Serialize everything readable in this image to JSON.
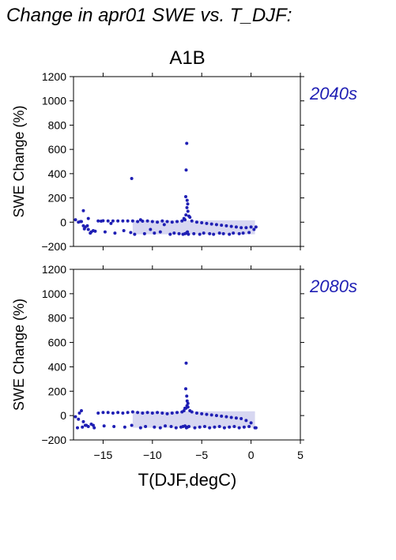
{
  "figure": {
    "title": "Change in apr01 SWE vs. T_DJF:",
    "scenario": "A1B"
  },
  "chart_data": [
    {
      "type": "scatter",
      "panel_label": "2040s",
      "xlabel": "T(DJF,degC)",
      "ylabel": "SWE Change (%)",
      "xlim": [
        -18,
        5
      ],
      "ylim": [
        -200,
        1200
      ],
      "xticks": [
        -15,
        -10,
        -5,
        0,
        5
      ],
      "yticks": [
        -200,
        0,
        200,
        400,
        600,
        800,
        1000,
        1200
      ],
      "grid": false,
      "color": "#1f1fb4",
      "series": [
        {
          "x": [
            -17.5,
            -17.2,
            -17.0,
            -16.8,
            -16.5,
            -16.2,
            -16.0,
            -15.8,
            -15.5,
            -15.2,
            -15.0,
            -14.5,
            -14.0,
            -13.5,
            -13.0,
            -12.5,
            -12.0,
            -11.5,
            -11.0,
            -10.5,
            -10.0,
            -9.5,
            -9.0,
            -8.5,
            -8.0,
            -7.5,
            -7.0,
            -6.8,
            -6.6,
            -6.5,
            -6.4,
            -6.2,
            -6.0,
            -5.5,
            -5.0,
            -4.5,
            -4.0,
            -3.5,
            -3.0,
            -2.5,
            -2.0,
            -1.5,
            -1.0,
            -0.5,
            0.0,
            0.5,
            -16.9,
            -16.3,
            -14.8,
            -13.8,
            -12.9,
            -12.2,
            -11.8,
            -10.8,
            -9.8,
            -9.2,
            -8.2,
            -7.8,
            -7.3,
            -6.9,
            -6.7,
            -6.55,
            -6.45,
            -6.35,
            -5.8,
            -5.2,
            -4.8,
            -4.2,
            -3.8,
            -3.2,
            -2.8,
            -2.2,
            -1.8,
            -1.2,
            -0.8,
            -0.2,
            0.3,
            -17.8,
            -17.3,
            -16.6,
            -14.2,
            -11.2,
            -8.8,
            -6.62,
            -6.48,
            -6.52,
            -12.1,
            -17.0,
            -16.5,
            -10.2,
            -6.58,
            -6.42,
            -6.7,
            -6.3
          ],
          "y": [
            0,
            5,
            95,
            -40,
            -60,
            -80,
            -70,
            -75,
            10,
            8,
            12,
            10,
            10,
            10,
            10,
            10,
            10,
            5,
            8,
            10,
            5,
            0,
            10,
            5,
            0,
            5,
            10,
            30,
            60,
            120,
            90,
            40,
            10,
            0,
            -5,
            -10,
            -15,
            -20,
            -25,
            -30,
            -35,
            -40,
            -45,
            -45,
            -40,
            -40,
            -55,
            -90,
            -80,
            -90,
            -70,
            -85,
            -100,
            -95,
            -90,
            -80,
            -100,
            -90,
            -95,
            -100,
            -95,
            -90,
            -80,
            -100,
            -95,
            -100,
            -90,
            -95,
            -100,
            -90,
            -95,
            -100,
            -90,
            -95,
            -90,
            -85,
            -60,
            20,
            5,
            -30,
            -10,
            20,
            -20,
            210,
            180,
            650,
            360,
            -30,
            30,
            -60,
            430,
            150,
            20,
            50
          ]
        }
      ]
    },
    {
      "type": "scatter",
      "panel_label": "2080s",
      "xlabel": "T(DJF,degC)",
      "ylabel": "SWE Change (%)",
      "xlim": [
        -18,
        5
      ],
      "ylim": [
        -200,
        1200
      ],
      "xticks": [
        -15,
        -10,
        -5,
        0,
        5
      ],
      "yticks": [
        -200,
        0,
        200,
        400,
        600,
        800,
        1000,
        1200
      ],
      "grid": false,
      "color": "#1f1fb4",
      "series": [
        {
          "x": [
            -17.8,
            -17.5,
            -17.2,
            -17.0,
            -16.8,
            -16.5,
            -16.2,
            -16.0,
            -15.5,
            -15.0,
            -14.5,
            -14.0,
            -13.5,
            -13.0,
            -12.5,
            -12.0,
            -11.5,
            -11.0,
            -10.5,
            -10.0,
            -9.5,
            -9.0,
            -8.5,
            -8.0,
            -7.5,
            -7.0,
            -6.8,
            -6.6,
            -6.5,
            -6.4,
            -6.2,
            -6.0,
            -5.5,
            -5.0,
            -4.5,
            -4.0,
            -3.5,
            -3.0,
            -2.5,
            -2.0,
            -1.5,
            -1.0,
            -0.5,
            0.0,
            0.5,
            -17.6,
            -17.1,
            -16.7,
            -15.9,
            -14.9,
            -13.9,
            -12.8,
            -12.1,
            -11.2,
            -10.7,
            -9.8,
            -9.2,
            -8.7,
            -8.1,
            -7.6,
            -7.1,
            -6.9,
            -6.7,
            -6.55,
            -6.45,
            -6.3,
            -5.7,
            -5.2,
            -4.7,
            -4.2,
            -3.7,
            -3.2,
            -2.7,
            -2.2,
            -1.7,
            -1.2,
            -0.7,
            -0.2,
            0.4,
            -6.58,
            -6.62,
            -6.52,
            -6.48,
            -6.4,
            -6.7,
            -17.4
          ],
          "y": [
            -10,
            -30,
            40,
            -50,
            -80,
            -90,
            -70,
            -80,
            20,
            25,
            25,
            20,
            25,
            20,
            25,
            30,
            25,
            20,
            25,
            20,
            25,
            20,
            15,
            20,
            25,
            30,
            40,
            60,
            80,
            70,
            40,
            30,
            20,
            15,
            10,
            5,
            0,
            -5,
            -10,
            -15,
            -20,
            -25,
            -40,
            -60,
            -100,
            -100,
            -95,
            -80,
            -100,
            -85,
            -90,
            -95,
            -80,
            -100,
            -90,
            -95,
            -100,
            -85,
            -90,
            -100,
            -95,
            -90,
            -85,
            -100,
            -95,
            -90,
            -100,
            -95,
            -90,
            -100,
            -95,
            -90,
            -100,
            -95,
            -90,
            -100,
            -95,
            -90,
            -100,
            430,
            220,
            160,
            120,
            100,
            60,
            20
          ]
        }
      ]
    }
  ]
}
